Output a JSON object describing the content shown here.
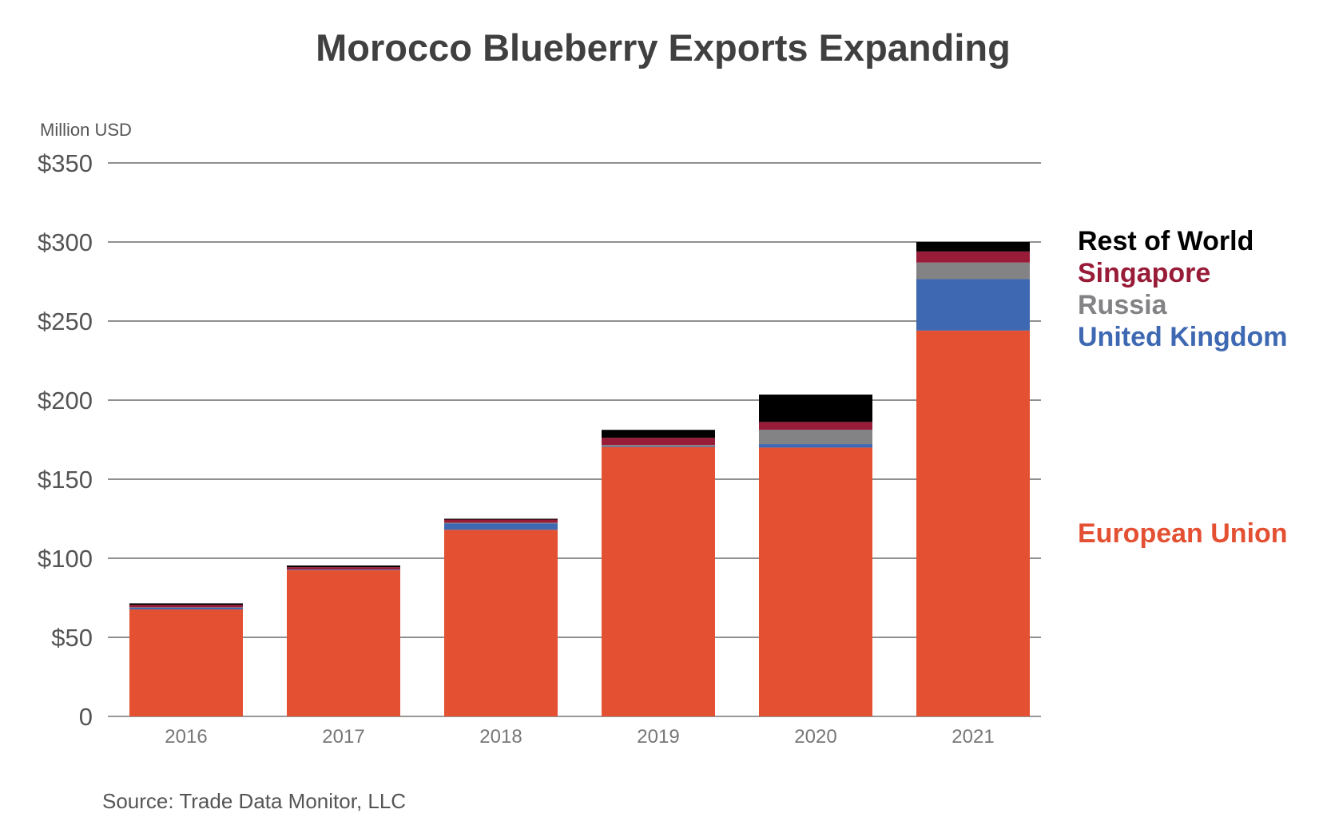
{
  "chart_data": {
    "type": "bar",
    "stacked": true,
    "title": "Morocco Blueberry Exports Expanding",
    "ylabel": "Million USD",
    "xlabel": "",
    "ylim": [
      0,
      350
    ],
    "yticks": [
      0,
      50,
      100,
      150,
      200,
      250,
      300,
      350
    ],
    "ytick_labels": [
      "0",
      "$50",
      "$100",
      "$150",
      "$200",
      "$250",
      "$300",
      "$350"
    ],
    "grid": true,
    "legend_placement": "right",
    "categories": [
      "2016",
      "2017",
      "2018",
      "2019",
      "2020",
      "2021"
    ],
    "series": [
      {
        "name": "European Union",
        "color": "#E35032",
        "values": [
          67.7,
          92.4,
          118,
          170.4,
          170,
          244
        ]
      },
      {
        "name": "United Kingdom",
        "color": "#3E68B1",
        "values": [
          1,
          0.3,
          4,
          0.5,
          2.2,
          32.5
        ]
      },
      {
        "name": "Russia",
        "color": "#838386",
        "values": [
          0.3,
          0.2,
          0.5,
          0.7,
          9.1,
          10.5
        ]
      },
      {
        "name": "Singapore",
        "color": "#981B37",
        "values": [
          1.5,
          1.5,
          2,
          4.6,
          4.9,
          7
        ]
      },
      {
        "name": "Rest of World",
        "color": "#000000",
        "values": [
          1,
          1,
          0.5,
          5,
          17.3,
          6
        ]
      }
    ],
    "source": "Source: Trade Data Monitor, LLC"
  }
}
